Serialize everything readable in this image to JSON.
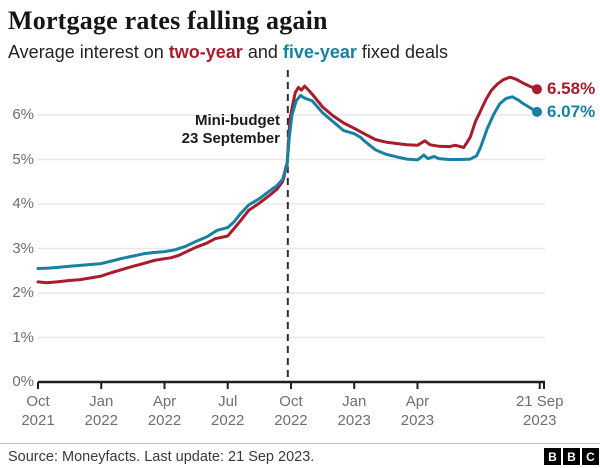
{
  "header": {
    "title": "Mortgage rates falling again",
    "subtitle": {
      "pre": "Average interest on ",
      "series1": "two-year",
      "mid": " and ",
      "series2": "five-year",
      "post": " fixed deals"
    }
  },
  "footer": {
    "source": "Source: Moneyfacts. Last update: 21 Sep 2023.",
    "logo_letters": [
      "B",
      "B",
      "C"
    ]
  },
  "colors": {
    "two_year": "#a81c2c",
    "five_year": "#1880a0",
    "grid": "#e7e7e7",
    "axis": "#1f1f1f",
    "event_line": "#2e2e2e"
  },
  "chart_data": {
    "type": "line",
    "x_unit": "months since Oct 2021",
    "x_range_months": [
      0,
      23.8
    ],
    "ylim": [
      0,
      6.9
    ],
    "grid": true,
    "y_ticks": [
      "0%",
      "1%",
      "2%",
      "3%",
      "4%",
      "5%",
      "6%"
    ],
    "x_ticks": [
      {
        "month": 0,
        "line1": "Oct",
        "line2": "2021"
      },
      {
        "month": 3,
        "line1": "Jan",
        "line2": "2022"
      },
      {
        "month": 6,
        "line1": "Apr",
        "line2": "2022"
      },
      {
        "month": 9,
        "line1": "Jul",
        "line2": "2022"
      },
      {
        "month": 12,
        "line1": "Oct",
        "line2": "2022"
      },
      {
        "month": 15,
        "line1": "Jan",
        "line2": "2023"
      },
      {
        "month": 18,
        "line1": "Apr",
        "line2": "2023"
      },
      {
        "month": 23.8,
        "line1": "21 Sep",
        "line2": "2023"
      }
    ],
    "event_line": {
      "month": 11.85,
      "label_line1": "Mini-budget",
      "label_line2": "23 September"
    },
    "series": [
      {
        "name": "two-year",
        "end_label": "6.58%",
        "end_value": 6.58,
        "points": [
          [
            0,
            2.25
          ],
          [
            0.4,
            2.23
          ],
          [
            0.9,
            2.25
          ],
          [
            1.5,
            2.28
          ],
          [
            2,
            2.3
          ],
          [
            2.5,
            2.34
          ],
          [
            3,
            2.38
          ],
          [
            3.5,
            2.46
          ],
          [
            4,
            2.53
          ],
          [
            4.5,
            2.6
          ],
          [
            5,
            2.66
          ],
          [
            5.5,
            2.73
          ],
          [
            6,
            2.77
          ],
          [
            6.3,
            2.79
          ],
          [
            6.7,
            2.85
          ],
          [
            7,
            2.92
          ],
          [
            7.5,
            3.03
          ],
          [
            8,
            3.12
          ],
          [
            8.4,
            3.22
          ],
          [
            8.7,
            3.25
          ],
          [
            9,
            3.28
          ],
          [
            9.3,
            3.45
          ],
          [
            9.6,
            3.62
          ],
          [
            10,
            3.86
          ],
          [
            10.5,
            4.02
          ],
          [
            11,
            4.2
          ],
          [
            11.35,
            4.34
          ],
          [
            11.6,
            4.5
          ],
          [
            11.68,
            4.62
          ],
          [
            11.73,
            4.78
          ],
          [
            11.82,
            4.92
          ],
          [
            11.95,
            5.9
          ],
          [
            12.05,
            6.15
          ],
          [
            12.2,
            6.5
          ],
          [
            12.35,
            6.62
          ],
          [
            12.5,
            6.56
          ],
          [
            12.65,
            6.65
          ],
          [
            12.85,
            6.55
          ],
          [
            13,
            6.47
          ],
          [
            13.5,
            6.18
          ],
          [
            14,
            5.98
          ],
          [
            14.5,
            5.82
          ],
          [
            15,
            5.7
          ],
          [
            15.5,
            5.57
          ],
          [
            16,
            5.45
          ],
          [
            16.5,
            5.39
          ],
          [
            17,
            5.36
          ],
          [
            17.5,
            5.33
          ],
          [
            18,
            5.32
          ],
          [
            18.35,
            5.42
          ],
          [
            18.6,
            5.33
          ],
          [
            19,
            5.3
          ],
          [
            19.5,
            5.29
          ],
          [
            19.8,
            5.32
          ],
          [
            20.2,
            5.27
          ],
          [
            20.5,
            5.5
          ],
          [
            20.75,
            5.85
          ],
          [
            21,
            6.1
          ],
          [
            21.25,
            6.35
          ],
          [
            21.5,
            6.55
          ],
          [
            21.8,
            6.7
          ],
          [
            22.1,
            6.8
          ],
          [
            22.4,
            6.85
          ],
          [
            22.7,
            6.8
          ],
          [
            23,
            6.72
          ],
          [
            23.35,
            6.64
          ],
          [
            23.67,
            6.58
          ]
        ]
      },
      {
        "name": "five-year",
        "end_label": "6.07%",
        "end_value": 6.07,
        "points": [
          [
            0,
            2.55
          ],
          [
            0.5,
            2.56
          ],
          [
            1,
            2.58
          ],
          [
            1.5,
            2.6
          ],
          [
            2,
            2.62
          ],
          [
            2.5,
            2.64
          ],
          [
            3,
            2.66
          ],
          [
            3.5,
            2.72
          ],
          [
            4,
            2.78
          ],
          [
            4.5,
            2.83
          ],
          [
            5,
            2.88
          ],
          [
            5.5,
            2.91
          ],
          [
            6,
            2.93
          ],
          [
            6.5,
            2.97
          ],
          [
            7,
            3.05
          ],
          [
            7.5,
            3.16
          ],
          [
            8,
            3.26
          ],
          [
            8.5,
            3.41
          ],
          [
            9,
            3.47
          ],
          [
            9.3,
            3.6
          ],
          [
            9.6,
            3.78
          ],
          [
            10,
            3.98
          ],
          [
            10.5,
            4.12
          ],
          [
            11,
            4.3
          ],
          [
            11.35,
            4.42
          ],
          [
            11.6,
            4.55
          ],
          [
            11.73,
            4.76
          ],
          [
            11.8,
            4.82
          ],
          [
            11.92,
            5.5
          ],
          [
            12.05,
            6.0
          ],
          [
            12.25,
            6.32
          ],
          [
            12.45,
            6.44
          ],
          [
            12.65,
            6.38
          ],
          [
            13,
            6.32
          ],
          [
            13.5,
            6.05
          ],
          [
            14,
            5.85
          ],
          [
            14.5,
            5.65
          ],
          [
            15,
            5.58
          ],
          [
            15.3,
            5.5
          ],
          [
            15.5,
            5.41
          ],
          [
            16,
            5.22
          ],
          [
            16.5,
            5.12
          ],
          [
            17,
            5.06
          ],
          [
            17.5,
            5.01
          ],
          [
            18,
            4.99
          ],
          [
            18.3,
            5.1
          ],
          [
            18.5,
            5.02
          ],
          [
            18.8,
            5.07
          ],
          [
            19,
            5.02
          ],
          [
            19.5,
            5.0
          ],
          [
            20,
            5.0
          ],
          [
            20.5,
            5.01
          ],
          [
            20.8,
            5.08
          ],
          [
            21,
            5.28
          ],
          [
            21.3,
            5.68
          ],
          [
            21.6,
            6.0
          ],
          [
            21.9,
            6.25
          ],
          [
            22.2,
            6.37
          ],
          [
            22.5,
            6.41
          ],
          [
            22.8,
            6.33
          ],
          [
            23,
            6.26
          ],
          [
            23.35,
            6.16
          ],
          [
            23.67,
            6.07
          ]
        ]
      }
    ]
  }
}
